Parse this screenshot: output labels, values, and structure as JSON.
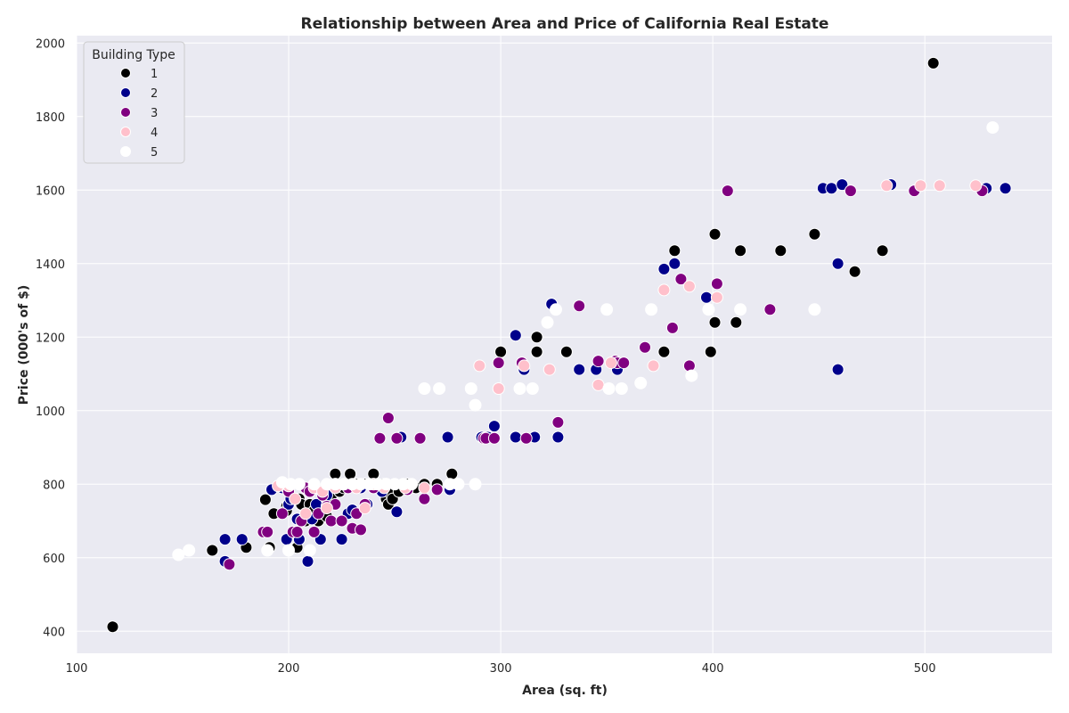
{
  "chart_data": {
    "type": "scatter",
    "title": "Relationship between Area and Price of California Real Estate",
    "xlabel": "Area (sq. ft)",
    "ylabel": "Price (000's of $)",
    "xlim": [
      100,
      560
    ],
    "ylim": [
      340,
      2020
    ],
    "xticks": [
      100,
      200,
      300,
      400,
      500
    ],
    "yticks": [
      400,
      600,
      800,
      1000,
      1200,
      1400,
      1600,
      1800,
      2000
    ],
    "grid": true,
    "legend": {
      "title": "Building Type",
      "position": "top-left"
    },
    "background": "#eaeaf2",
    "series": [
      {
        "name": "1",
        "color": "#000000",
        "points": [
          [
            117,
            412
          ],
          [
            164,
            620
          ],
          [
            180,
            628
          ],
          [
            189,
            758
          ],
          [
            191,
            628
          ],
          [
            193,
            720
          ],
          [
            199,
            740
          ],
          [
            199,
            728
          ],
          [
            200,
            745
          ],
          [
            204,
            628
          ],
          [
            205,
            760
          ],
          [
            206,
            745
          ],
          [
            208,
            700
          ],
          [
            210,
            745
          ],
          [
            212,
            728
          ],
          [
            214,
            700
          ],
          [
            216,
            720
          ],
          [
            218,
            712
          ],
          [
            220,
            765
          ],
          [
            222,
            828
          ],
          [
            224,
            780
          ],
          [
            226,
            790
          ],
          [
            228,
            800
          ],
          [
            229,
            828
          ],
          [
            232,
            800
          ],
          [
            236,
            800
          ],
          [
            240,
            828
          ],
          [
            245,
            800
          ],
          [
            246,
            760
          ],
          [
            247,
            745
          ],
          [
            248,
            775
          ],
          [
            249,
            760
          ],
          [
            252,
            780
          ],
          [
            256,
            800
          ],
          [
            260,
            790
          ],
          [
            264,
            800
          ],
          [
            270,
            800
          ],
          [
            277,
            828
          ],
          [
            300,
            1160
          ],
          [
            317,
            1200
          ],
          [
            317,
            1160
          ],
          [
            331,
            1160
          ],
          [
            377,
            1160
          ],
          [
            382,
            1435
          ],
          [
            399,
            1160
          ],
          [
            401,
            1480
          ],
          [
            401,
            1240
          ],
          [
            411,
            1240
          ],
          [
            413,
            1435
          ],
          [
            432,
            1435
          ],
          [
            448,
            1480
          ],
          [
            467,
            1378
          ],
          [
            480,
            1435
          ],
          [
            504,
            1945
          ]
        ]
      },
      {
        "name": "2",
        "color": "#00008b",
        "points": [
          [
            170,
            650
          ],
          [
            170,
            590
          ],
          [
            178,
            650
          ],
          [
            192,
            785
          ],
          [
            197,
            790
          ],
          [
            199,
            650
          ],
          [
            200,
            745
          ],
          [
            201,
            760
          ],
          [
            204,
            705
          ],
          [
            205,
            650
          ],
          [
            208,
            720
          ],
          [
            209,
            590
          ],
          [
            211,
            705
          ],
          [
            213,
            745
          ],
          [
            215,
            650
          ],
          [
            218,
            770
          ],
          [
            222,
            800
          ],
          [
            225,
            650
          ],
          [
            228,
            720
          ],
          [
            230,
            730
          ],
          [
            234,
            790
          ],
          [
            237,
            745
          ],
          [
            240,
            800
          ],
          [
            244,
            780
          ],
          [
            251,
            725
          ],
          [
            253,
            928
          ],
          [
            275,
            928
          ],
          [
            276,
            785
          ],
          [
            291,
            928
          ],
          [
            294,
            928
          ],
          [
            297,
            958
          ],
          [
            307,
            1205
          ],
          [
            307,
            928
          ],
          [
            311,
            1112
          ],
          [
            316,
            928
          ],
          [
            324,
            1290
          ],
          [
            327,
            928
          ],
          [
            337,
            1112
          ],
          [
            345,
            1112
          ],
          [
            355,
            1112
          ],
          [
            377,
            1385
          ],
          [
            382,
            1400
          ],
          [
            397,
            1308
          ],
          [
            452,
            1605
          ],
          [
            456,
            1605
          ],
          [
            459,
            1400
          ],
          [
            459,
            1112
          ],
          [
            461,
            1615
          ],
          [
            484,
            1615
          ],
          [
            529,
            1605
          ],
          [
            538,
            1605
          ]
        ]
      },
      {
        "name": "3",
        "color": "#800080",
        "points": [
          [
            172,
            582
          ],
          [
            188,
            670
          ],
          [
            190,
            670
          ],
          [
            197,
            720
          ],
          [
            199,
            790
          ],
          [
            200,
            780
          ],
          [
            202,
            670
          ],
          [
            204,
            670
          ],
          [
            206,
            700
          ],
          [
            208,
            790
          ],
          [
            210,
            780
          ],
          [
            212,
            670
          ],
          [
            214,
            720
          ],
          [
            216,
            770
          ],
          [
            218,
            740
          ],
          [
            220,
            700
          ],
          [
            222,
            745
          ],
          [
            225,
            700
          ],
          [
            228,
            790
          ],
          [
            230,
            680
          ],
          [
            232,
            720
          ],
          [
            234,
            676
          ],
          [
            236,
            745
          ],
          [
            240,
            790
          ],
          [
            243,
            925
          ],
          [
            246,
            800
          ],
          [
            247,
            980
          ],
          [
            251,
            925
          ],
          [
            256,
            785
          ],
          [
            262,
            925
          ],
          [
            264,
            760
          ],
          [
            270,
            785
          ],
          [
            292,
            925
          ],
          [
            293,
            925
          ],
          [
            297,
            925
          ],
          [
            299,
            1130
          ],
          [
            310,
            1130
          ],
          [
            312,
            925
          ],
          [
            327,
            968
          ],
          [
            337,
            1285
          ],
          [
            346,
            1135
          ],
          [
            354,
            1135
          ],
          [
            355,
            1130
          ],
          [
            358,
            1130
          ],
          [
            368,
            1172
          ],
          [
            381,
            1225
          ],
          [
            385,
            1358
          ],
          [
            389,
            1122
          ],
          [
            402,
            1345
          ],
          [
            407,
            1598
          ],
          [
            427,
            1275
          ],
          [
            465,
            1598
          ],
          [
            495,
            1598
          ],
          [
            527,
            1598
          ]
        ]
      },
      {
        "name": "4",
        "color": "#ffc0cb",
        "points": [
          [
            195,
            795
          ],
          [
            200,
            795
          ],
          [
            203,
            760
          ],
          [
            208,
            720
          ],
          [
            212,
            790
          ],
          [
            216,
            780
          ],
          [
            218,
            735
          ],
          [
            222,
            790
          ],
          [
            226,
            800
          ],
          [
            232,
            790
          ],
          [
            236,
            735
          ],
          [
            240,
            800
          ],
          [
            245,
            790
          ],
          [
            255,
            790
          ],
          [
            264,
            790
          ],
          [
            290,
            1122
          ],
          [
            299,
            1060
          ],
          [
            311,
            1122
          ],
          [
            323,
            1112
          ],
          [
            346,
            1070
          ],
          [
            352,
            1130
          ],
          [
            372,
            1122
          ],
          [
            377,
            1328
          ],
          [
            389,
            1338
          ],
          [
            402,
            1308
          ],
          [
            482,
            1612
          ],
          [
            498,
            1612
          ],
          [
            507,
            1612
          ],
          [
            524,
            1612
          ]
        ]
      },
      {
        "name": "5",
        "color": "#ffffff",
        "points": [
          [
            148,
            608
          ],
          [
            153,
            620
          ],
          [
            190,
            620
          ],
          [
            197,
            805
          ],
          [
            200,
            620
          ],
          [
            201,
            800
          ],
          [
            205,
            800
          ],
          [
            210,
            620
          ],
          [
            212,
            800
          ],
          [
            218,
            800
          ],
          [
            222,
            800
          ],
          [
            226,
            800
          ],
          [
            230,
            800
          ],
          [
            234,
            800
          ],
          [
            238,
            800
          ],
          [
            242,
            800
          ],
          [
            246,
            800
          ],
          [
            250,
            800
          ],
          [
            254,
            800
          ],
          [
            258,
            800
          ],
          [
            264,
            1060
          ],
          [
            271,
            1060
          ],
          [
            276,
            800
          ],
          [
            280,
            800
          ],
          [
            286,
            1060
          ],
          [
            288,
            1015
          ],
          [
            288,
            800
          ],
          [
            309,
            1060
          ],
          [
            315,
            1060
          ],
          [
            322,
            1240
          ],
          [
            326,
            1275
          ],
          [
            350,
            1275
          ],
          [
            351,
            1060
          ],
          [
            357,
            1060
          ],
          [
            366,
            1075
          ],
          [
            371,
            1275
          ],
          [
            390,
            1095
          ],
          [
            398,
            1275
          ],
          [
            413,
            1275
          ],
          [
            448,
            1275
          ],
          [
            532,
            1770
          ]
        ]
      }
    ]
  }
}
